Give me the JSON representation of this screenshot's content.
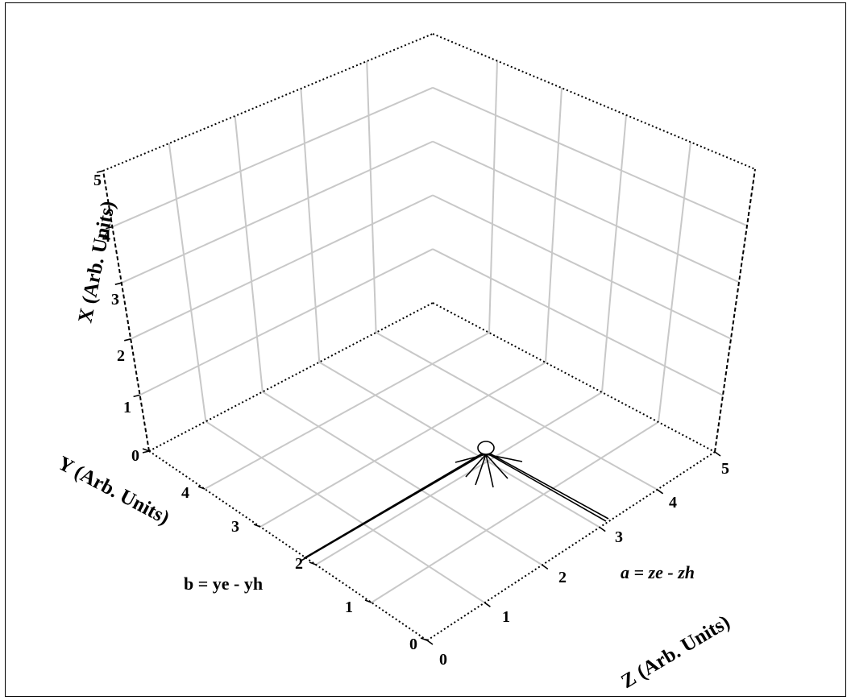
{
  "axes": {
    "x_label": "X (Arb. Units)",
    "y_label": "Y (Arb. Units)",
    "z_label": "Z (Arb. Units)",
    "x_ticks": [
      "0",
      "1",
      "2",
      "3",
      "4",
      "5"
    ],
    "y_ticks": [
      "0",
      "1",
      "2",
      "3",
      "4"
    ],
    "z_ticks": [
      "0",
      "1",
      "2",
      "3",
      "4",
      "5"
    ]
  },
  "annotations": {
    "b_label": "b = ye - yh",
    "a_label": "a = ze - zh"
  },
  "point": {
    "y": 2,
    "z": 3,
    "x": 0
  }
}
